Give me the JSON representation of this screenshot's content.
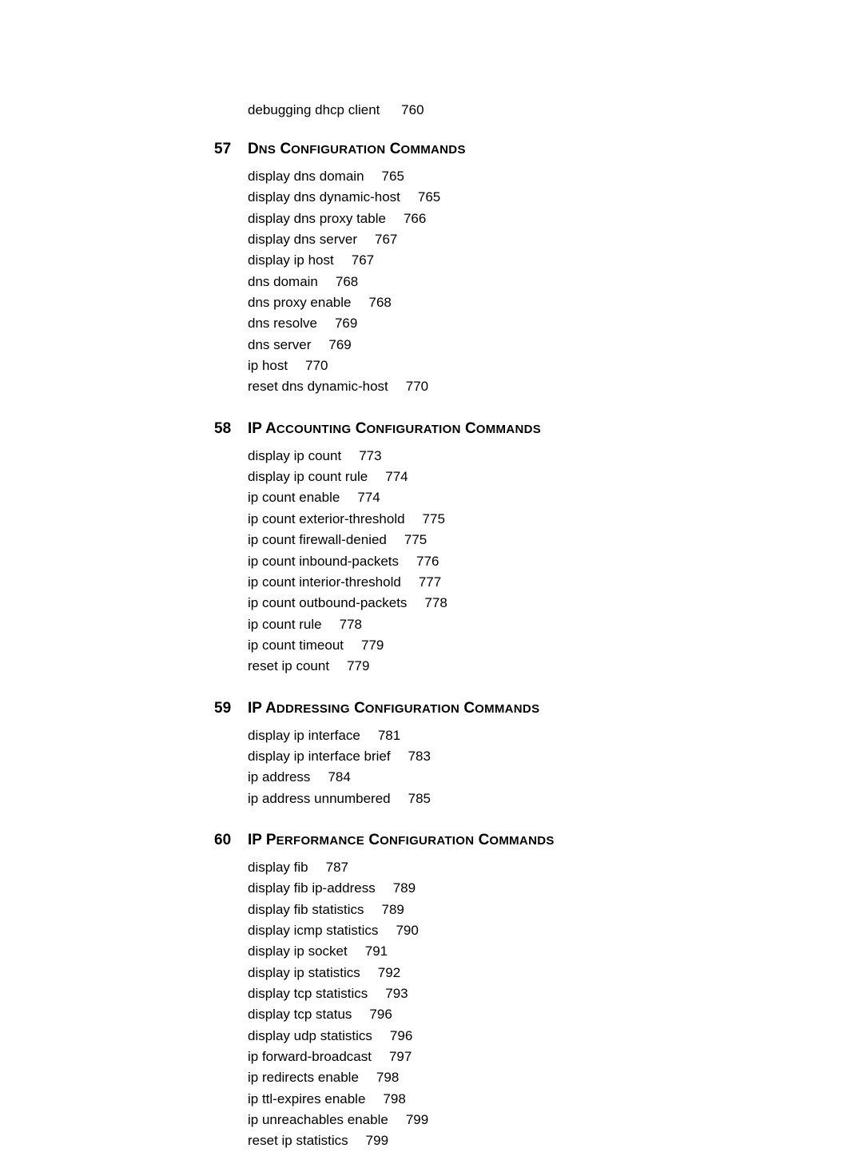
{
  "text_color": "#000000",
  "background_color": "#ffffff",
  "body_fontsize": 17,
  "heading_fontsize": 19,
  "smallcaps_fontsize": 15,
  "orphan": {
    "label": "debugging dhcp client",
    "page": "760"
  },
  "sections": [
    {
      "number": "57",
      "title_html": "D<span class=\"smallcaps\">NS</span> C<span class=\"smallcaps\">ONFIGURATION</span> C<span class=\"smallcaps\">OMMANDS</span>",
      "items": [
        {
          "label": "display dns domain",
          "page": "765"
        },
        {
          "label": "display dns dynamic-host",
          "page": "765"
        },
        {
          "label": "display dns proxy table",
          "page": "766"
        },
        {
          "label": "display dns server",
          "page": "767"
        },
        {
          "label": "display ip host",
          "page": "767"
        },
        {
          "label": "dns domain",
          "page": "768"
        },
        {
          "label": "dns proxy enable",
          "page": "768"
        },
        {
          "label": "dns resolve",
          "page": "769"
        },
        {
          "label": "dns server",
          "page": "769"
        },
        {
          "label": "ip host",
          "page": "770"
        },
        {
          "label": "reset dns dynamic-host",
          "page": "770"
        }
      ]
    },
    {
      "number": "58",
      "title_html": "IP A<span class=\"smallcaps\">CCOUNTING</span> C<span class=\"smallcaps\">ONFIGURATION</span> C<span class=\"smallcaps\">OMMANDS</span>",
      "items": [
        {
          "label": "display ip count",
          "page": "773"
        },
        {
          "label": "display ip count rule",
          "page": "774"
        },
        {
          "label": "ip count enable",
          "page": "774"
        },
        {
          "label": "ip count exterior-threshold",
          "page": "775"
        },
        {
          "label": "ip count firewall-denied",
          "page": "775"
        },
        {
          "label": "ip count inbound-packets",
          "page": "776"
        },
        {
          "label": "ip count interior-threshold",
          "page": "777"
        },
        {
          "label": "ip count outbound-packets",
          "page": "778"
        },
        {
          "label": "ip count rule",
          "page": "778"
        },
        {
          "label": "ip count timeout",
          "page": "779"
        },
        {
          "label": "reset ip count",
          "page": "779"
        }
      ]
    },
    {
      "number": "59",
      "title_html": "IP A<span class=\"smallcaps\">DDRESSING</span> C<span class=\"smallcaps\">ONFIGURATION</span> C<span class=\"smallcaps\">OMMANDS</span>",
      "items": [
        {
          "label": "display ip interface",
          "page": "781"
        },
        {
          "label": "display ip interface brief",
          "page": "783"
        },
        {
          "label": "ip address",
          "page": "784"
        },
        {
          "label": "ip address unnumbered",
          "page": "785"
        }
      ]
    },
    {
      "number": "60",
      "title_html": "IP P<span class=\"smallcaps\">ERFORMANCE</span> C<span class=\"smallcaps\">ONFIGURATION</span> C<span class=\"smallcaps\">OMMANDS</span>",
      "items": [
        {
          "label": "display fib",
          "page": "787"
        },
        {
          "label": "display fib ip-address",
          "page": "789"
        },
        {
          "label": "display fib statistics",
          "page": "789"
        },
        {
          "label": "display icmp statistics",
          "page": "790"
        },
        {
          "label": "display ip socket",
          "page": "791"
        },
        {
          "label": "display ip statistics",
          "page": "792"
        },
        {
          "label": "display tcp statistics",
          "page": "793"
        },
        {
          "label": "display tcp status",
          "page": "796"
        },
        {
          "label": "display udp statistics",
          "page": "796"
        },
        {
          "label": "ip forward-broadcast",
          "page": "797"
        },
        {
          "label": "ip redirects enable",
          "page": "798"
        },
        {
          "label": "ip ttl-expires enable",
          "page": "798"
        },
        {
          "label": "ip unreachables enable",
          "page": "799"
        },
        {
          "label": "reset ip statistics",
          "page": "799"
        }
      ]
    }
  ]
}
